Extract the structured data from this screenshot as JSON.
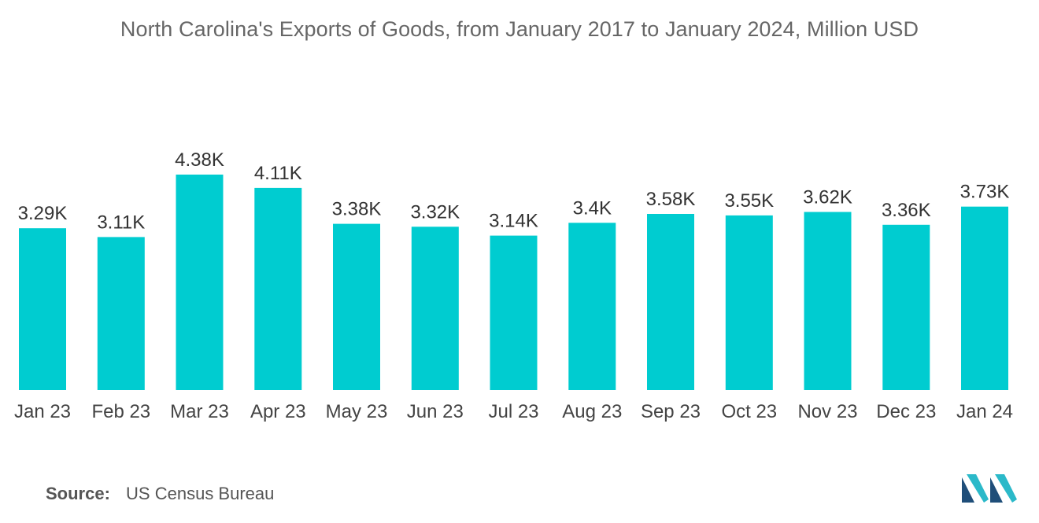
{
  "title": "North Carolina's Exports of Goods, from January 2017 to January 2024, Million USD",
  "source": {
    "label": "Source:",
    "text": "US Census Bureau"
  },
  "colors": {
    "bar": "#00CCD0",
    "logo_dark": "#1f4e79",
    "logo_light": "#2bb9c9"
  },
  "chart_data": {
    "type": "bar",
    "categories": [
      "Jan 23",
      "Feb 23",
      "Mar 23",
      "Apr 23",
      "May 23",
      "Jun 23",
      "Jul 23",
      "Aug 23",
      "Sep 23",
      "Oct 23",
      "Nov 23",
      "Dec 23",
      "Jan 24"
    ],
    "values": [
      3290,
      3110,
      4380,
      4110,
      3380,
      3320,
      3140,
      3400,
      3580,
      3550,
      3620,
      3360,
      3730
    ],
    "data_labels": [
      "3.29K",
      "3.11K",
      "4.38K",
      "4.11K",
      "3.38K",
      "3.32K",
      "3.14K",
      "3.4K",
      "3.58K",
      "3.55K",
      "3.62K",
      "3.36K",
      "3.73K"
    ],
    "title": "North Carolina's Exports of Goods, from January 2017 to January 2024, Million USD",
    "xlabel": "",
    "ylabel": "",
    "ylim": [
      0,
      4380
    ],
    "grid": false,
    "legend": "none"
  }
}
